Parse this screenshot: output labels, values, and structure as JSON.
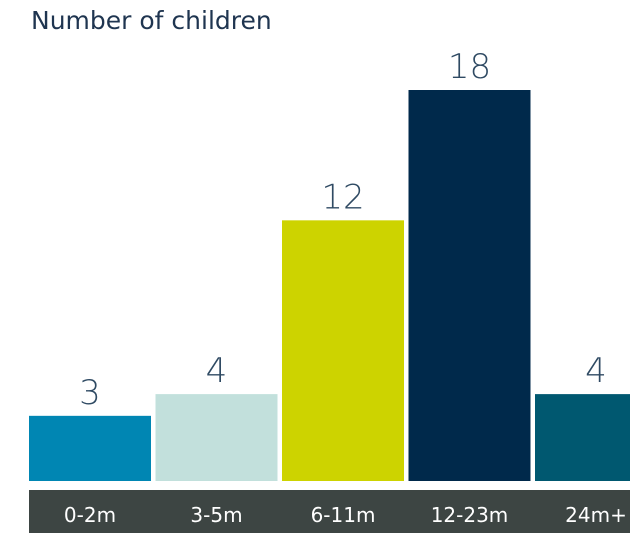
{
  "chart_data": {
    "type": "bar",
    "title": "Number of children",
    "categories": [
      "0-2m",
      "3-5m",
      "6-11m",
      "12-23m",
      "24m+"
    ],
    "values": [
      3,
      4,
      12,
      18,
      4
    ],
    "colors": [
      "#0086b3",
      "#c2e0dc",
      "#cdd300",
      "#00294b",
      "#005870"
    ],
    "xlabel": "",
    "ylabel": "",
    "ylim": [
      0,
      18
    ],
    "grid": false,
    "show_value_labels": true,
    "axis_band_color": "#3d4543"
  }
}
